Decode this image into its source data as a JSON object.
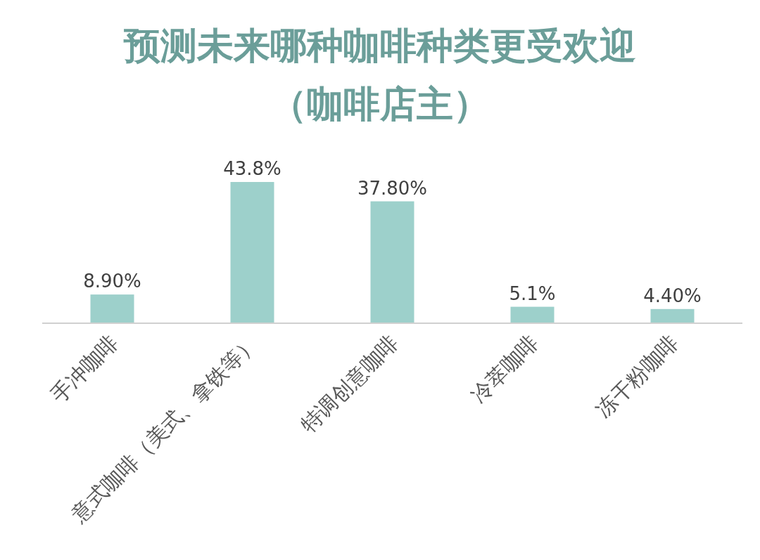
{
  "chart_data": {
    "type": "bar",
    "title": "预测未来哪种咖啡种类更受欢迎",
    "subtitle": "（咖啡店主）",
    "categories": [
      "手冲咖啡",
      "意式咖啡（美式、拿铁等）",
      "特调创意咖啡",
      "冷萃咖啡",
      "冻干粉咖啡"
    ],
    "values": [
      8.9,
      43.8,
      37.8,
      5.1,
      4.4
    ],
    "value_labels": [
      "8.90%",
      "43.8%",
      "37.80%",
      "5.1%",
      "4.40%"
    ],
    "color": "#9dd0cb"
  }
}
